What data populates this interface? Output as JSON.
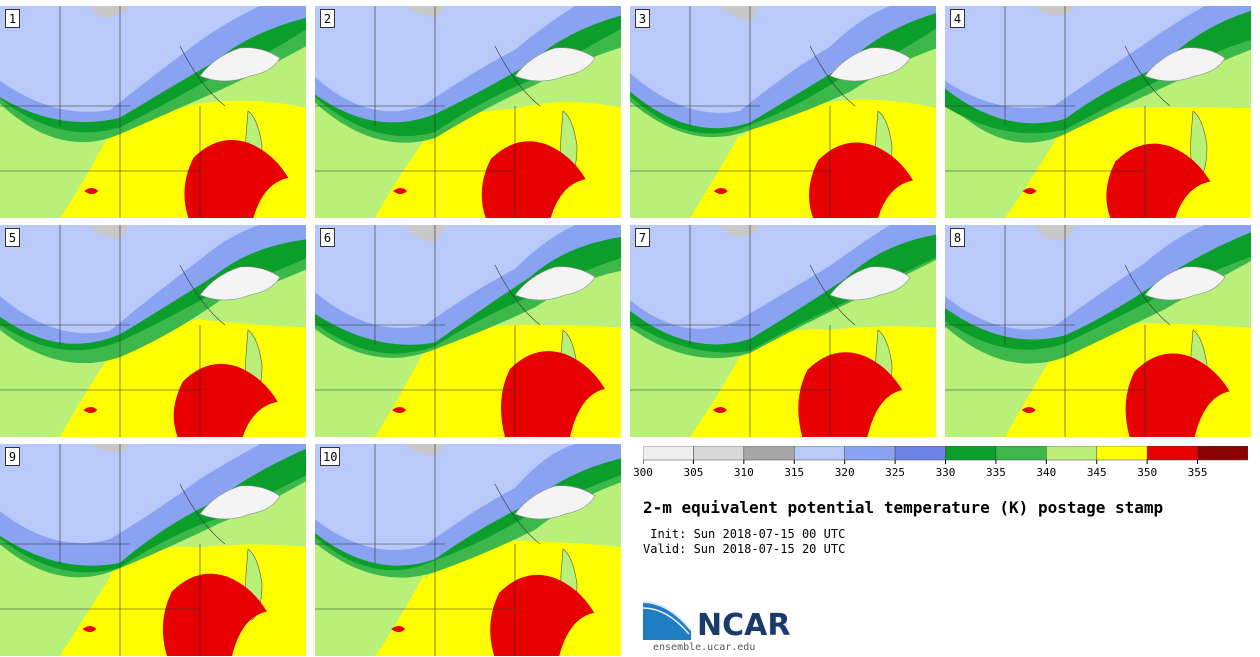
{
  "title": "2-m equivalent potential temperature (K) postage stamp",
  "init": " Init: Sun 2018-07-15 00 UTC",
  "valid": "Valid: Sun 2018-07-15 20 UTC",
  "logo_text": "NCAR",
  "logo_url": "ensemble.ucar.edu",
  "members": [
    "1",
    "2",
    "3",
    "4",
    "5",
    "6",
    "7",
    "8",
    "9",
    "10"
  ],
  "colorbar": {
    "ticks": [
      "300",
      "305",
      "310",
      "315",
      "320",
      "325",
      "330",
      "335",
      "340",
      "345",
      "350",
      "355"
    ],
    "colors": [
      "#efefef",
      "#d9d9d9",
      "#a6a6a6",
      "#b8c9fa",
      "#8aa2f2",
      "#6e83e6",
      "#0b9e2b",
      "#3cb84a",
      "#b8f07a",
      "#ffff00",
      "#e60000",
      "#8b0000"
    ]
  },
  "map_colors": {
    "cool_gray": "#c8c8c8",
    "light_blue": "#b8c9fa",
    "blue": "#8aa2f2",
    "dark_green": "#0b9e2b",
    "green": "#3cb84a",
    "light_green": "#b8f07a",
    "yellow": "#ffff00",
    "red": "#e60000",
    "lake": "#f4f4f4"
  }
}
